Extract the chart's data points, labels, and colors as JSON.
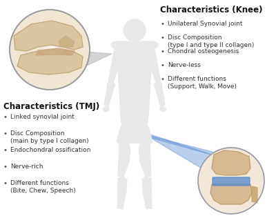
{
  "title_knee": "Characteristics (Knee)",
  "title_tmj": "Characteristics (TMJ)",
  "knee_bullets": [
    "Unilateral Synovial joint",
    "Disc Composition\n(type I and type II collagen)",
    "Chondral osteogenesis",
    "Nerve-less",
    "Different functions\n(Support, Walk, Move)"
  ],
  "tmj_bullets": [
    "Linked synovial joint",
    "Disc Composition\n(main by type I collagen)",
    "Endochondral ossification",
    "Nerve-rich",
    "Different functions\n(Bite, Chew, Speech)"
  ],
  "bg_color": "#ffffff",
  "text_color": "#1a1a1a",
  "title_color": "#111111",
  "bullet_color": "#333333",
  "tmj_circle_fill": "#e8d5b8",
  "knee_circle_fill": "#e8d5b8",
  "triangle_gray_color": "#aaaaaa",
  "triangle_blue_color": "#5588cc",
  "body_color": "#e8e8e8",
  "body_outline": "#bbbbbb"
}
